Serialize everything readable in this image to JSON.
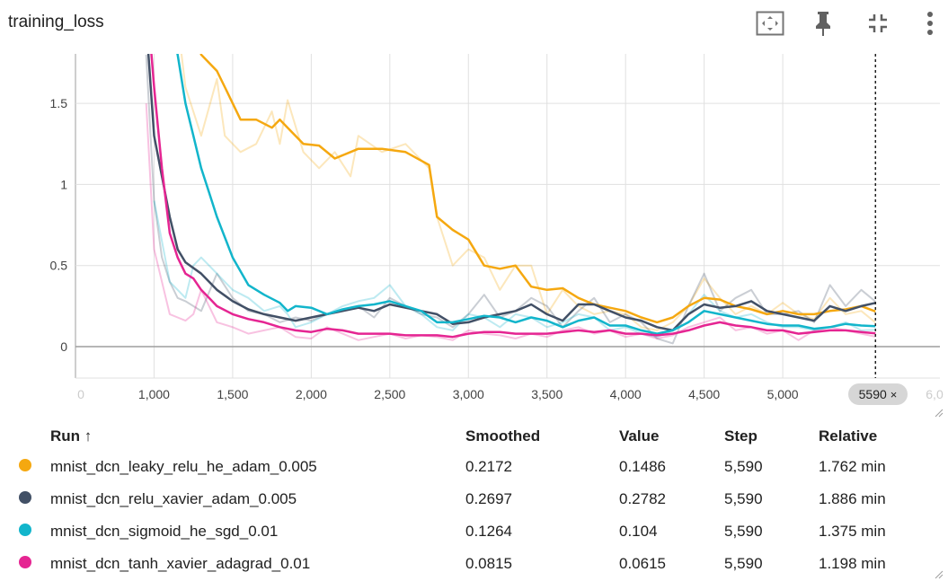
{
  "card": {
    "title": "training_loss"
  },
  "toolbar": {
    "fit_icon": "fit-domain-icon",
    "pin_icon": "pin-icon",
    "collapse_icon": "collapse-icon",
    "more_icon": "more-vert-icon"
  },
  "step_marker": {
    "label": "5590",
    "close": "×"
  },
  "table": {
    "headers": {
      "run": "Run ↑",
      "smoothed": "Smoothed",
      "value": "Value",
      "step": "Step",
      "relative": "Relative"
    },
    "rows": [
      {
        "color": "#f5a810",
        "name": "mnist_dcn_leaky_relu_he_adam_0.005",
        "smoothed": "0.2172",
        "value": "0.1486",
        "step": "5,590",
        "relative": "1.762 min"
      },
      {
        "color": "#425066",
        "name": "mnist_dcn_relu_xavier_adam_0.005",
        "smoothed": "0.2697",
        "value": "0.2782",
        "step": "5,590",
        "relative": "1.886 min"
      },
      {
        "color": "#12b5cb",
        "name": "mnist_dcn_sigmoid_he_sgd_0.01",
        "smoothed": "0.1264",
        "value": "0.104",
        "step": "5,590",
        "relative": "1.375 min"
      },
      {
        "color": "#e52592",
        "name": "mnist_dcn_tanh_xavier_adagrad_0.01",
        "smoothed": "0.0815",
        "value": "0.0615",
        "step": "5,590",
        "relative": "1.198 min"
      }
    ]
  },
  "chart_data": {
    "type": "line",
    "title": "training_loss",
    "xlabel": "",
    "ylabel": "",
    "xlim": [
      500,
      6000
    ],
    "ylim": [
      -0.2,
      1.8
    ],
    "x_ticks": [
      1000,
      1500,
      2000,
      2500,
      3000,
      3500,
      4000,
      4500,
      5000
    ],
    "x_tick_labels": [
      "1,000",
      "1,500",
      "2,000",
      "2,500",
      "3,000",
      "3,500",
      "4,000",
      "4,500",
      "5,000"
    ],
    "x_edge_labels": [
      "0",
      "6,0"
    ],
    "y_ticks": [
      0,
      0.5,
      1,
      1.5
    ],
    "y_tick_labels": [
      "0",
      "0.5",
      "1",
      "1.5"
    ],
    "marker_step": 5590,
    "grid": true,
    "series": [
      {
        "name": "mnist_dcn_leaky_relu_he_adam_0.005",
        "color": "#f5a810",
        "x": [
          1150,
          1200,
          1300,
          1400,
          1450,
          1550,
          1650,
          1750,
          1800,
          1850,
          1950,
          2050,
          2150,
          2250,
          2300,
          2450,
          2600,
          2750,
          2800,
          2900,
          3000,
          3100,
          3200,
          3300,
          3400,
          3500,
          3600,
          3700,
          3800,
          3900,
          4000,
          4100,
          4200,
          4300,
          4400,
          4500,
          4600,
          4700,
          4800,
          4900,
          5000,
          5100,
          5200,
          5300,
          5400,
          5500,
          5590
        ],
        "raw": [
          2.0,
          1.6,
          1.3,
          1.65,
          1.3,
          1.2,
          1.25,
          1.45,
          1.25,
          1.52,
          1.2,
          1.1,
          1.2,
          1.05,
          1.3,
          1.2,
          1.25,
          1.1,
          0.8,
          0.5,
          0.6,
          0.55,
          0.35,
          0.5,
          0.5,
          0.2,
          0.35,
          0.25,
          0.2,
          0.22,
          0.2,
          0.12,
          0.1,
          0.15,
          0.25,
          0.42,
          0.3,
          0.2,
          0.25,
          0.2,
          0.27,
          0.2,
          0.17,
          0.3,
          0.2,
          0.22,
          0.1486
        ],
        "smoothed": [
          2.6,
          2.2,
          1.8,
          1.7,
          1.6,
          1.4,
          1.4,
          1.35,
          1.4,
          1.35,
          1.25,
          1.24,
          1.16,
          1.2,
          1.22,
          1.22,
          1.2,
          1.12,
          0.8,
          0.72,
          0.66,
          0.5,
          0.48,
          0.5,
          0.37,
          0.35,
          0.36,
          0.3,
          0.26,
          0.24,
          0.22,
          0.18,
          0.15,
          0.18,
          0.25,
          0.3,
          0.29,
          0.25,
          0.23,
          0.2,
          0.22,
          0.2,
          0.2,
          0.22,
          0.23,
          0.25,
          0.2172
        ]
      },
      {
        "name": "mnist_dcn_relu_xavier_adam_0.005",
        "color": "#425066",
        "x": [
          950,
          1000,
          1050,
          1100,
          1150,
          1200,
          1300,
          1400,
          1500,
          1600,
          1700,
          1800,
          1900,
          2000,
          2100,
          2200,
          2300,
          2400,
          2500,
          2600,
          2700,
          2800,
          2900,
          3000,
          3100,
          3200,
          3300,
          3400,
          3500,
          3600,
          3700,
          3800,
          3900,
          4000,
          4100,
          4200,
          4300,
          4400,
          4500,
          4600,
          4700,
          4800,
          4900,
          5000,
          5100,
          5200,
          5300,
          5400,
          5500,
          5590
        ],
        "raw": [
          1.8,
          0.9,
          0.55,
          0.4,
          0.3,
          0.28,
          0.22,
          0.45,
          0.3,
          0.22,
          0.2,
          0.15,
          0.18,
          0.16,
          0.2,
          0.22,
          0.25,
          0.18,
          0.3,
          0.25,
          0.2,
          0.18,
          0.12,
          0.2,
          0.32,
          0.18,
          0.22,
          0.3,
          0.25,
          0.12,
          0.22,
          0.3,
          0.15,
          0.2,
          0.15,
          0.05,
          0.02,
          0.25,
          0.45,
          0.22,
          0.3,
          0.35,
          0.2,
          0.2,
          0.22,
          0.15,
          0.38,
          0.25,
          0.35,
          0.2782
        ],
        "smoothed": [
          2.0,
          1.3,
          1.05,
          0.8,
          0.6,
          0.52,
          0.45,
          0.35,
          0.28,
          0.23,
          0.2,
          0.18,
          0.16,
          0.18,
          0.2,
          0.22,
          0.24,
          0.22,
          0.26,
          0.24,
          0.22,
          0.2,
          0.14,
          0.15,
          0.18,
          0.2,
          0.22,
          0.26,
          0.2,
          0.16,
          0.26,
          0.26,
          0.22,
          0.18,
          0.16,
          0.12,
          0.1,
          0.2,
          0.26,
          0.24,
          0.25,
          0.28,
          0.22,
          0.2,
          0.18,
          0.16,
          0.25,
          0.22,
          0.25,
          0.2697
        ]
      },
      {
        "name": "mnist_dcn_sigmoid_he_sgd_0.01",
        "color": "#12b5cb",
        "x": [
          1000,
          1100,
          1150,
          1200,
          1250,
          1300,
          1350,
          1400,
          1500,
          1600,
          1700,
          1800,
          1850,
          1900,
          2000,
          2100,
          2200,
          2300,
          2400,
          2500,
          2600,
          2700,
          2800,
          2900,
          3000,
          3100,
          3200,
          3300,
          3400,
          3500,
          3600,
          3700,
          3800,
          3900,
          4000,
          4100,
          4200,
          4300,
          4400,
          4500,
          4600,
          4700,
          4800,
          4900,
          5000,
          5100,
          5200,
          5300,
          5400,
          5500,
          5590
        ],
        "raw": [
          0.9,
          0.4,
          0.35,
          0.3,
          0.5,
          0.55,
          0.5,
          0.45,
          0.35,
          0.3,
          0.22,
          0.25,
          0.2,
          0.12,
          0.15,
          0.2,
          0.25,
          0.28,
          0.3,
          0.38,
          0.25,
          0.2,
          0.12,
          0.1,
          0.2,
          0.18,
          0.12,
          0.2,
          0.18,
          0.12,
          0.15,
          0.2,
          0.18,
          0.1,
          0.12,
          0.08,
          0.06,
          0.1,
          0.2,
          0.32,
          0.22,
          0.18,
          0.2,
          0.15,
          0.12,
          0.12,
          0.1,
          0.12,
          0.15,
          0.1,
          0.104
        ],
        "smoothed": [
          2.2,
          2.0,
          1.8,
          1.5,
          1.3,
          1.1,
          0.95,
          0.8,
          0.55,
          0.38,
          0.32,
          0.27,
          0.22,
          0.25,
          0.24,
          0.2,
          0.23,
          0.25,
          0.26,
          0.28,
          0.25,
          0.22,
          0.15,
          0.15,
          0.17,
          0.19,
          0.18,
          0.15,
          0.18,
          0.16,
          0.12,
          0.16,
          0.18,
          0.13,
          0.13,
          0.1,
          0.08,
          0.1,
          0.15,
          0.22,
          0.2,
          0.18,
          0.16,
          0.14,
          0.13,
          0.13,
          0.11,
          0.12,
          0.14,
          0.13,
          0.1264
        ]
      },
      {
        "name": "mnist_dcn_tanh_xavier_adagrad_0.01",
        "color": "#e52592",
        "x": [
          950,
          1000,
          1050,
          1100,
          1150,
          1200,
          1250,
          1300,
          1350,
          1400,
          1500,
          1600,
          1700,
          1800,
          1900,
          2000,
          2100,
          2200,
          2300,
          2400,
          2500,
          2600,
          2700,
          2800,
          2900,
          3000,
          3100,
          3200,
          3300,
          3400,
          3500,
          3600,
          3700,
          3800,
          3900,
          4000,
          4100,
          4200,
          4300,
          4400,
          4500,
          4600,
          4700,
          4800,
          4900,
          5000,
          5100,
          5200,
          5300,
          5400,
          5500,
          5590
        ],
        "raw": [
          1.5,
          0.6,
          0.4,
          0.2,
          0.18,
          0.16,
          0.2,
          0.35,
          0.25,
          0.15,
          0.12,
          0.08,
          0.1,
          0.12,
          0.06,
          0.05,
          0.12,
          0.08,
          0.04,
          0.06,
          0.08,
          0.05,
          0.07,
          0.06,
          0.04,
          0.1,
          0.08,
          0.07,
          0.05,
          0.08,
          0.06,
          0.1,
          0.12,
          0.08,
          0.1,
          0.06,
          0.08,
          0.05,
          0.07,
          0.12,
          0.15,
          0.18,
          0.1,
          0.12,
          0.08,
          0.1,
          0.04,
          0.1,
          0.12,
          0.1,
          0.08,
          0.0615
        ],
        "smoothed": [
          2.2,
          1.6,
          1.1,
          0.7,
          0.55,
          0.45,
          0.42,
          0.35,
          0.3,
          0.25,
          0.2,
          0.17,
          0.15,
          0.12,
          0.1,
          0.09,
          0.11,
          0.1,
          0.08,
          0.08,
          0.08,
          0.07,
          0.07,
          0.07,
          0.06,
          0.08,
          0.09,
          0.09,
          0.08,
          0.08,
          0.08,
          0.09,
          0.1,
          0.09,
          0.1,
          0.08,
          0.08,
          0.07,
          0.08,
          0.1,
          0.13,
          0.15,
          0.13,
          0.12,
          0.1,
          0.1,
          0.08,
          0.09,
          0.1,
          0.1,
          0.09,
          0.0815
        ]
      }
    ]
  }
}
